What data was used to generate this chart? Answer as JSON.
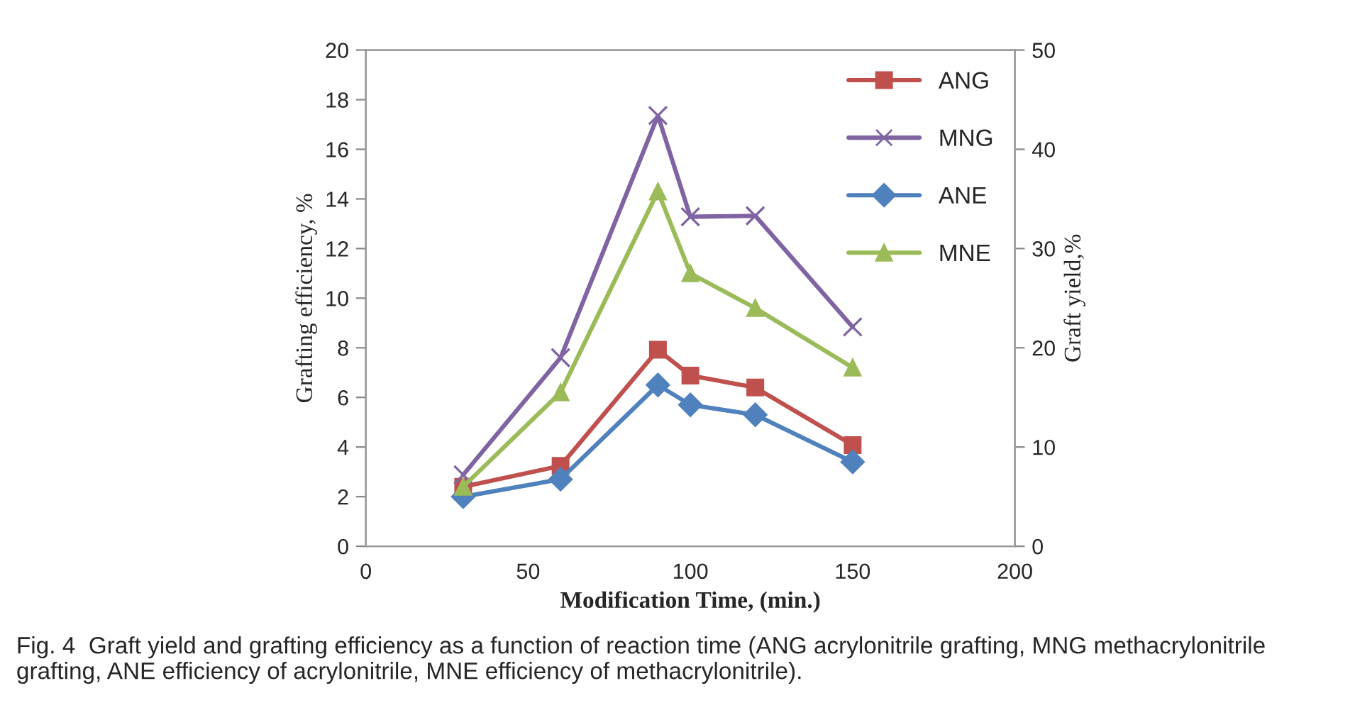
{
  "chart_data": {
    "type": "line",
    "xlabel": "Modification Time, (min.)",
    "ylabel": "Grafting efficiency, %",
    "y2label": "Graft yield,%",
    "x": [
      30,
      60,
      90,
      100,
      120,
      150
    ],
    "series": [
      {
        "name": "ANG",
        "color": "#c0504d",
        "marker": "square",
        "axis": "y2",
        "values": [
          6.0,
          8.1,
          19.8,
          17.2,
          16.0,
          10.2
        ]
      },
      {
        "name": "MNG",
        "color": "#8064a2",
        "marker": "cross",
        "axis": "y2",
        "values": [
          7.2,
          19.0,
          43.4,
          33.2,
          33.3,
          22.1
        ]
      },
      {
        "name": "ANE",
        "color": "#4f81bd",
        "marker": "diamond",
        "values": [
          2.0,
          2.7,
          6.5,
          5.7,
          5.3,
          3.4
        ]
      },
      {
        "name": "MNE",
        "color": "#9bbb59",
        "marker": "triangle",
        "values": [
          2.4,
          6.2,
          14.3,
          11.0,
          9.6,
          7.2
        ]
      }
    ],
    "xlim": [
      0,
      200
    ],
    "xticks": [
      0,
      50,
      100,
      150,
      200
    ],
    "ylim": [
      0,
      20
    ],
    "yticks": [
      0,
      2,
      4,
      6,
      8,
      10,
      12,
      14,
      16,
      18,
      20
    ],
    "y2lim": [
      0,
      50
    ],
    "y2ticks": [
      0,
      10,
      20,
      30,
      40,
      50
    ],
    "grid": false,
    "legend": "top right",
    "line_style": "solid",
    "annotations": [
      "Fig. 4  Graft yield and grafting efficiency as a function of reaction time (ANG acrylonitrile grafting, MNG methacrylonitrile grafting, ANE efficiency of acrylonitrile, MNE efficiency of methacrylonitrile)."
    ]
  }
}
